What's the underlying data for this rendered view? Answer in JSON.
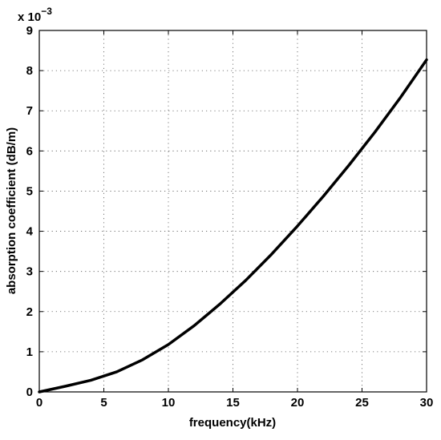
{
  "chart_data": {
    "type": "line",
    "title": "",
    "xlabel": "frequency(kHz)",
    "ylabel": "absorption coefficient (dB/m)",
    "y_multiplier_label": {
      "base": "x 10",
      "exponent": "−3"
    },
    "xlim": [
      0,
      30
    ],
    "ylim": [
      0,
      9
    ],
    "x_ticks": [
      "0",
      "5",
      "10",
      "15",
      "20",
      "25",
      "30"
    ],
    "y_ticks": [
      "0",
      "1",
      "2",
      "3",
      "4",
      "5",
      "6",
      "7",
      "8",
      "9"
    ],
    "x_tick_values": [
      0,
      5,
      10,
      15,
      20,
      25,
      30
    ],
    "y_tick_values": [
      0,
      1,
      2,
      3,
      4,
      5,
      6,
      7,
      8,
      9
    ],
    "grid": true,
    "legend": "none",
    "line_color": "#000000",
    "series": [
      {
        "x": [
          0,
          2,
          4,
          6,
          8,
          10,
          12,
          14,
          16,
          18,
          20,
          22,
          24,
          26,
          28,
          30
        ],
        "y": [
          0,
          0.14,
          0.29,
          0.5,
          0.8,
          1.18,
          1.65,
          2.19,
          2.78,
          3.43,
          4.13,
          4.87,
          5.65,
          6.47,
          7.34,
          8.27
        ]
      }
    ]
  }
}
